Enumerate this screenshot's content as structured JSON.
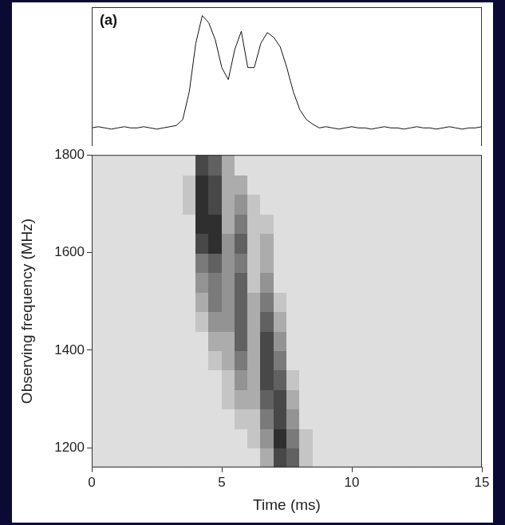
{
  "chart_data": [
    {
      "type": "line",
      "title": "(a)",
      "tick_labels": false,
      "grid": false,
      "color": "#111111",
      "xlim": [
        0,
        15
      ],
      "ylim": [
        -0.1,
        1.05
      ],
      "x": [
        0,
        0.25,
        0.5,
        0.75,
        1,
        1.25,
        1.5,
        1.75,
        2,
        2.25,
        2.5,
        2.75,
        3,
        3.25,
        3.5,
        3.75,
        4,
        4.25,
        4.5,
        4.75,
        5,
        5.25,
        5.5,
        5.75,
        6,
        6.25,
        6.5,
        6.75,
        7,
        7.25,
        7.5,
        7.75,
        8,
        8.25,
        8.5,
        8.75,
        9,
        9.25,
        9.5,
        9.75,
        10,
        10.25,
        10.5,
        10.75,
        11,
        11.25,
        11.5,
        11.75,
        12,
        12.25,
        12.5,
        12.75,
        13,
        13.25,
        13.5,
        13.75,
        14,
        14.25,
        14.5,
        14.75,
        15
      ],
      "values": [
        0.05,
        0.06,
        0.05,
        0.04,
        0.05,
        0.06,
        0.05,
        0.05,
        0.06,
        0.05,
        0.04,
        0.05,
        0.06,
        0.07,
        0.12,
        0.35,
        0.75,
        0.98,
        0.92,
        0.78,
        0.55,
        0.45,
        0.7,
        0.85,
        0.55,
        0.55,
        0.75,
        0.84,
        0.8,
        0.72,
        0.55,
        0.35,
        0.2,
        0.12,
        0.08,
        0.05,
        0.06,
        0.05,
        0.04,
        0.05,
        0.06,
        0.05,
        0.05,
        0.04,
        0.05,
        0.06,
        0.05,
        0.05,
        0.04,
        0.05,
        0.06,
        0.05,
        0.05,
        0.04,
        0.05,
        0.06,
        0.05,
        0.04,
        0.05,
        0.05,
        0.06
      ]
    },
    {
      "type": "heatmap",
      "xlabel": "Time (ms)",
      "ylabel": "Observing frequency (MHz)",
      "grid": false,
      "xlim": [
        0,
        15
      ],
      "ylim": [
        1160,
        1800
      ],
      "xticks": [
        0,
        5,
        10,
        15
      ],
      "yticks": [
        1200,
        1400,
        1600,
        1800
      ],
      "x_bins": [
        0,
        0.5,
        1,
        1.5,
        2,
        2.5,
        3,
        3.5,
        4,
        4.5,
        5,
        5.5,
        6,
        6.5,
        7,
        7.5,
        8,
        8.5,
        9,
        9.5,
        10,
        10.5,
        11,
        11.5,
        12,
        12.5,
        13,
        13.5,
        14,
        14.5,
        15
      ],
      "y_bins": [
        1160,
        1200,
        1240,
        1280,
        1320,
        1360,
        1400,
        1440,
        1480,
        1520,
        1560,
        1600,
        1640,
        1680,
        1720,
        1760,
        1800
      ],
      "cells": [
        [
          1,
          1,
          1,
          1,
          1,
          1,
          1,
          1,
          1,
          1,
          1,
          1,
          1,
          3,
          7,
          6,
          2,
          1,
          1,
          1,
          1,
          1,
          1,
          1,
          1,
          1,
          1,
          1,
          1,
          1
        ],
        [
          1,
          1,
          1,
          1,
          1,
          1,
          1,
          1,
          1,
          1,
          1,
          1,
          2,
          4,
          8,
          5,
          2,
          1,
          1,
          1,
          1,
          1,
          1,
          1,
          1,
          1,
          1,
          1,
          1,
          1
        ],
        [
          1,
          1,
          1,
          1,
          1,
          1,
          1,
          1,
          1,
          1,
          1,
          2,
          2,
          5,
          7,
          4,
          1,
          1,
          1,
          1,
          1,
          1,
          1,
          1,
          1,
          1,
          1,
          1,
          1,
          1
        ],
        [
          1,
          1,
          1,
          1,
          1,
          1,
          1,
          1,
          1,
          1,
          2,
          3,
          3,
          6,
          7,
          3,
          1,
          1,
          1,
          1,
          1,
          1,
          1,
          1,
          1,
          1,
          1,
          1,
          1,
          1
        ],
        [
          1,
          1,
          1,
          1,
          1,
          1,
          1,
          1,
          1,
          1,
          2,
          4,
          3,
          7,
          6,
          2,
          1,
          1,
          1,
          1,
          1,
          1,
          1,
          1,
          1,
          1,
          1,
          1,
          1,
          1
        ],
        [
          1,
          1,
          1,
          1,
          1,
          1,
          1,
          1,
          1,
          2,
          3,
          5,
          3,
          7,
          5,
          1,
          1,
          1,
          1,
          1,
          1,
          1,
          1,
          1,
          1,
          1,
          1,
          1,
          1,
          1
        ],
        [
          1,
          1,
          1,
          1,
          1,
          1,
          1,
          1,
          1,
          3,
          3,
          6,
          3,
          7,
          4,
          1,
          1,
          1,
          1,
          1,
          1,
          1,
          1,
          1,
          1,
          1,
          1,
          1,
          1,
          1
        ],
        [
          1,
          1,
          1,
          1,
          1,
          1,
          1,
          1,
          2,
          4,
          4,
          6,
          3,
          6,
          3,
          1,
          1,
          1,
          1,
          1,
          1,
          1,
          1,
          1,
          1,
          1,
          1,
          1,
          1,
          1
        ],
        [
          1,
          1,
          1,
          1,
          1,
          1,
          1,
          1,
          3,
          5,
          4,
          6,
          3,
          5,
          2,
          1,
          1,
          1,
          1,
          1,
          1,
          1,
          1,
          1,
          1,
          1,
          1,
          1,
          1,
          1
        ],
        [
          1,
          1,
          1,
          1,
          1,
          1,
          1,
          1,
          4,
          5,
          4,
          6,
          2,
          4,
          1,
          1,
          1,
          1,
          1,
          1,
          1,
          1,
          1,
          1,
          1,
          1,
          1,
          1,
          1,
          1
        ],
        [
          1,
          1,
          1,
          1,
          1,
          1,
          1,
          1,
          5,
          6,
          4,
          5,
          2,
          3,
          1,
          1,
          1,
          1,
          1,
          1,
          1,
          1,
          1,
          1,
          1,
          1,
          1,
          1,
          1,
          1
        ],
        [
          1,
          1,
          1,
          1,
          1,
          1,
          1,
          1,
          7,
          8,
          4,
          6,
          2,
          3,
          1,
          1,
          1,
          1,
          1,
          1,
          1,
          1,
          1,
          1,
          1,
          1,
          1,
          1,
          1,
          1
        ],
        [
          1,
          1,
          1,
          1,
          1,
          1,
          1,
          1,
          8,
          8,
          3,
          5,
          2,
          2,
          1,
          1,
          1,
          1,
          1,
          1,
          1,
          1,
          1,
          1,
          1,
          1,
          1,
          1,
          1,
          1
        ],
        [
          1,
          1,
          1,
          1,
          1,
          1,
          1,
          2,
          8,
          7,
          3,
          4,
          2,
          1,
          1,
          1,
          1,
          1,
          1,
          1,
          1,
          1,
          1,
          1,
          1,
          1,
          1,
          1,
          1,
          1
        ],
        [
          1,
          1,
          1,
          1,
          1,
          1,
          1,
          2,
          8,
          7,
          3,
          3,
          1,
          1,
          1,
          1,
          1,
          1,
          1,
          1,
          1,
          1,
          1,
          1,
          1,
          1,
          1,
          1,
          1,
          1
        ],
        [
          1,
          1,
          1,
          1,
          1,
          1,
          1,
          1,
          7,
          6,
          3,
          1,
          1,
          1,
          1,
          1,
          1,
          1,
          1,
          1,
          1,
          1,
          1,
          1,
          1,
          1,
          1,
          1,
          1,
          1
        ]
      ]
    }
  ]
}
